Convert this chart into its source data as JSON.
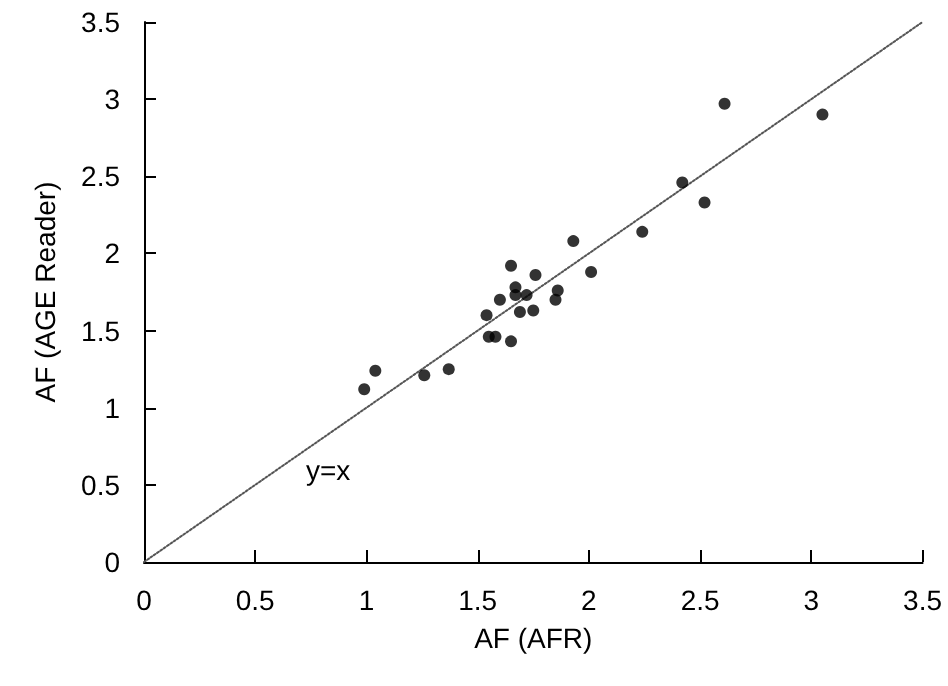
{
  "chart_data": {
    "type": "scatter",
    "xlabel": "AF (AFR)",
    "ylabel": "AF (AGE Reader)",
    "xlim": [
      0,
      3.5
    ],
    "ylim": [
      0,
      3.5
    ],
    "xticks": [
      0,
      0.5,
      1,
      1.5,
      2,
      2.5,
      3,
      3.5
    ],
    "yticks": [
      0,
      0.5,
      1,
      1.5,
      2,
      2.5,
      3,
      3.5
    ],
    "grid": false,
    "marker": "circle",
    "annotations": [
      "y=x"
    ],
    "series": [
      {
        "color": "#000000",
        "x": [
          0.99,
          1.04,
          1.26,
          1.37,
          1.54,
          1.55,
          1.58,
          1.6,
          1.65,
          1.65,
          1.67,
          1.67,
          1.69,
          1.72,
          1.75,
          1.76,
          1.85,
          1.86,
          1.93,
          2.01,
          2.24,
          2.42,
          2.52,
          2.61,
          3.05
        ],
        "values": [
          1.12,
          1.24,
          1.21,
          1.25,
          1.6,
          1.46,
          1.46,
          1.7,
          1.43,
          1.92,
          1.78,
          1.73,
          1.62,
          1.73,
          1.63,
          1.86,
          1.7,
          1.76,
          2.08,
          1.88,
          2.14,
          2.46,
          2.33,
          2.97,
          2.9
        ]
      },
      {
        "type": "line",
        "color": "#555555",
        "line_style": "dotted",
        "marker": "none",
        "x": [
          0,
          3.5
        ],
        "values": [
          0,
          3.5
        ]
      }
    ]
  }
}
